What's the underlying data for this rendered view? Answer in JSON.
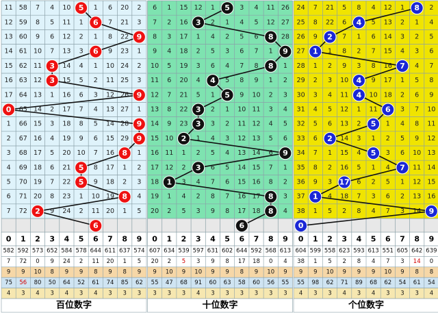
{
  "colors": {
    "bg_hundreds": "#dff3fb",
    "bg_tens": "#7ee3b0",
    "bg_ones": "#f0e400",
    "grid": "#8aa0a8",
    "ball_hundreds": "#ee1111",
    "ball_tens": "#111111",
    "ball_ones": "#1a27d6",
    "line": "#111111",
    "predict_row_bg": "#e8e8e8",
    "stat_row_colors": [
      "#ffffff",
      "#ffffff",
      "#f6d7a7",
      "#cfe4f2",
      "#f6e7b0"
    ]
  },
  "chart_data": {
    "type": "table",
    "sections": [
      {
        "name": "百位数字",
        "theme": "hundreds",
        "digits": [
          "0",
          "1",
          "2",
          "3",
          "4",
          "5",
          "6",
          "7",
          "8",
          "9"
        ],
        "rows": [
          [
            "11",
            "58",
            "7",
            "4",
            "10",
            "5",
            "1",
            "6",
            "20",
            "2"
          ],
          [
            "12",
            "59",
            "8",
            "5",
            "11",
            "1",
            "6",
            "7",
            "21",
            "3"
          ],
          [
            "13",
            "60",
            "9",
            "6",
            "12",
            "2",
            "1",
            "8",
            "22",
            "9"
          ],
          [
            "14",
            "61",
            "10",
            "7",
            "13",
            "3",
            "6",
            "9",
            "23",
            "1"
          ],
          [
            "15",
            "62",
            "11",
            "3",
            "14",
            "4",
            "1",
            "10",
            "24",
            "2"
          ],
          [
            "16",
            "63",
            "12",
            "3",
            "15",
            "5",
            "2",
            "11",
            "25",
            "3"
          ],
          [
            "17",
            "64",
            "13",
            "1",
            "16",
            "6",
            "3",
            "12",
            "26",
            "9"
          ],
          [
            "0",
            "65",
            "14",
            "2",
            "17",
            "7",
            "4",
            "13",
            "27",
            "1"
          ],
          [
            "1",
            "66",
            "15",
            "3",
            "18",
            "8",
            "5",
            "14",
            "28",
            "9"
          ],
          [
            "2",
            "67",
            "16",
            "4",
            "19",
            "9",
            "6",
            "15",
            "29",
            "9"
          ],
          [
            "3",
            "68",
            "17",
            "5",
            "20",
            "10",
            "7",
            "16",
            "8",
            "1"
          ],
          [
            "4",
            "69",
            "18",
            "6",
            "21",
            "5",
            "8",
            "17",
            "1",
            "2"
          ],
          [
            "5",
            "70",
            "19",
            "7",
            "22",
            "5",
            "9",
            "18",
            "2",
            "3"
          ],
          [
            "6",
            "71",
            "20",
            "8",
            "23",
            "1",
            "10",
            "19",
            "8",
            "4"
          ],
          [
            "7",
            "72",
            "2",
            "9",
            "24",
            "2",
            "11",
            "20",
            "1",
            "5"
          ],
          [
            "",
            "",
            "",
            "",
            "",
            "",
            "6",
            "",
            "",
            ""
          ]
        ],
        "hits": [
          5,
          6,
          9,
          6,
          3,
          3,
          9,
          0,
          9,
          9,
          8,
          5,
          5,
          8,
          2,
          6
        ],
        "stats": [
          [
            "582",
            "592",
            "573",
            "652",
            "584",
            "578",
            "644",
            "611",
            "637",
            "574"
          ],
          [
            "7",
            "72",
            "0",
            "9",
            "24",
            "2",
            "11",
            "20",
            "1",
            "5"
          ],
          [
            "9",
            "9",
            "10",
            "8",
            "9",
            "9",
            "8",
            "9",
            "8",
            "9"
          ],
          [
            "75",
            "56",
            "80",
            "50",
            "64",
            "52",
            "61",
            "74",
            "85",
            "62"
          ],
          [
            "4",
            "3",
            "4",
            "3",
            "4",
            "3",
            "4",
            "3",
            "3",
            "3"
          ]
        ]
      },
      {
        "name": "十位数字",
        "theme": "tens",
        "digits": [
          "0",
          "1",
          "2",
          "3",
          "4",
          "5",
          "6",
          "7",
          "8",
          "9"
        ],
        "rows": [
          [
            "6",
            "1",
            "15",
            "12",
            "1",
            "5",
            "3",
            "4",
            "11",
            "26"
          ],
          [
            "7",
            "2",
            "16",
            "3",
            "2",
            "1",
            "4",
            "5",
            "12",
            "27"
          ],
          [
            "8",
            "3",
            "17",
            "1",
            "4",
            "2",
            "5",
            "6",
            "8",
            "28"
          ],
          [
            "9",
            "4",
            "18",
            "2",
            "5",
            "3",
            "6",
            "7",
            "1",
            "9"
          ],
          [
            "10",
            "5",
            "19",
            "3",
            "6",
            "4",
            "7",
            "8",
            "8",
            "1"
          ],
          [
            "11",
            "6",
            "20",
            "4",
            "4",
            "5",
            "8",
            "9",
            "1",
            "2"
          ],
          [
            "12",
            "7",
            "21",
            "5",
            "1",
            "5",
            "9",
            "10",
            "2",
            "3"
          ],
          [
            "13",
            "8",
            "22",
            "3",
            "2",
            "1",
            "10",
            "11",
            "3",
            "4"
          ],
          [
            "14",
            "9",
            "23",
            "3",
            "3",
            "2",
            "11",
            "12",
            "4",
            "5"
          ],
          [
            "15",
            "10",
            "2",
            "1",
            "4",
            "3",
            "12",
            "13",
            "5",
            "6"
          ],
          [
            "16",
            "11",
            "1",
            "2",
            "5",
            "4",
            "13",
            "14",
            "6",
            "9"
          ],
          [
            "17",
            "12",
            "2",
            "3",
            "6",
            "5",
            "14",
            "15",
            "7",
            "1"
          ],
          [
            "18",
            "1",
            "3",
            "4",
            "7",
            "6",
            "15",
            "16",
            "8",
            "2"
          ],
          [
            "19",
            "1",
            "4",
            "2",
            "8",
            "7",
            "16",
            "17",
            "8",
            "3"
          ],
          [
            "20",
            "2",
            "5",
            "3",
            "9",
            "8",
            "17",
            "18",
            "8",
            "4"
          ],
          [
            "",
            "",
            "",
            "",
            "",
            "",
            "6",
            "",
            "",
            ""
          ]
        ],
        "hits": [
          5,
          3,
          8,
          9,
          8,
          4,
          5,
          3,
          3,
          2,
          9,
          3,
          1,
          8,
          8,
          6
        ],
        "stats": [
          [
            "607",
            "634",
            "539",
            "597",
            "631",
            "602",
            "644",
            "592",
            "568",
            "613"
          ],
          [
            "20",
            "2",
            "5",
            "3",
            "9",
            "8",
            "17",
            "18",
            "0",
            "4"
          ],
          [
            "9",
            "10",
            "9",
            "10",
            "9",
            "9",
            "8",
            "9",
            "10",
            "9"
          ],
          [
            "55",
            "47",
            "68",
            "91",
            "60",
            "63",
            "58",
            "60",
            "56",
            "55"
          ],
          [
            "3",
            "3",
            "3",
            "4",
            "3",
            "3",
            "3",
            "3",
            "3",
            "3"
          ]
        ]
      },
      {
        "name": "个位数字",
        "theme": "ones",
        "digits": [
          "0",
          "1",
          "2",
          "3",
          "4",
          "5",
          "6",
          "7",
          "8",
          "9"
        ],
        "rows": [
          [
            "24",
            "7",
            "21",
            "5",
            "8",
            "4",
            "12",
            "1",
            "8",
            "2"
          ],
          [
            "25",
            "8",
            "22",
            "6",
            "4",
            "5",
            "13",
            "2",
            "1",
            "4"
          ],
          [
            "26",
            "9",
            "2",
            "7",
            "1",
            "6",
            "14",
            "3",
            "2",
            "5"
          ],
          [
            "27",
            "1",
            "1",
            "8",
            "2",
            "7",
            "15",
            "4",
            "3",
            "6"
          ],
          [
            "28",
            "1",
            "2",
            "9",
            "3",
            "8",
            "16",
            "7",
            "4",
            "7"
          ],
          [
            "29",
            "2",
            "3",
            "10",
            "4",
            "9",
            "17",
            "1",
            "5",
            "8"
          ],
          [
            "30",
            "3",
            "4",
            "11",
            "4",
            "10",
            "18",
            "2",
            "6",
            "9"
          ],
          [
            "31",
            "4",
            "5",
            "12",
            "1",
            "11",
            "6",
            "3",
            "7",
            "10"
          ],
          [
            "32",
            "5",
            "6",
            "13",
            "2",
            "5",
            "1",
            "4",
            "8",
            "11"
          ],
          [
            "33",
            "6",
            "2",
            "14",
            "3",
            "1",
            "2",
            "5",
            "9",
            "12"
          ],
          [
            "34",
            "7",
            "1",
            "15",
            "4",
            "5",
            "3",
            "6",
            "10",
            "13"
          ],
          [
            "35",
            "8",
            "2",
            "16",
            "5",
            "1",
            "4",
            "7",
            "11",
            "14"
          ],
          [
            "36",
            "9",
            "3",
            "17",
            "6",
            "2",
            "5",
            "1",
            "12",
            "15"
          ],
          [
            "37",
            "1",
            "4",
            "18",
            "7",
            "3",
            "6",
            "2",
            "13",
            "16"
          ],
          [
            "38",
            "1",
            "5",
            "2",
            "8",
            "4",
            "7",
            "3",
            "14",
            "9"
          ],
          [
            "0",
            "",
            "",
            "",
            "",
            "",
            "",
            "",
            "",
            ""
          ]
        ],
        "hits": [
          8,
          4,
          2,
          1,
          7,
          4,
          4,
          6,
          5,
          2,
          5,
          7,
          3,
          1,
          9,
          0
        ],
        "stats": [
          [
            "604",
            "599",
            "558",
            "623",
            "593",
            "613",
            "551",
            "605",
            "642",
            "639"
          ],
          [
            "38",
            "1",
            "5",
            "2",
            "8",
            "4",
            "7",
            "3",
            "14",
            "0"
          ],
          [
            "9",
            "9",
            "10",
            "9",
            "9",
            "9",
            "10",
            "9",
            "8",
            "8"
          ],
          [
            "55",
            "98",
            "62",
            "71",
            "89",
            "68",
            "62",
            "54",
            "61",
            "54"
          ],
          [
            "4",
            "3",
            "3",
            "4",
            "3",
            "4",
            "3",
            "3",
            "3",
            "4"
          ]
        ]
      }
    ]
  }
}
